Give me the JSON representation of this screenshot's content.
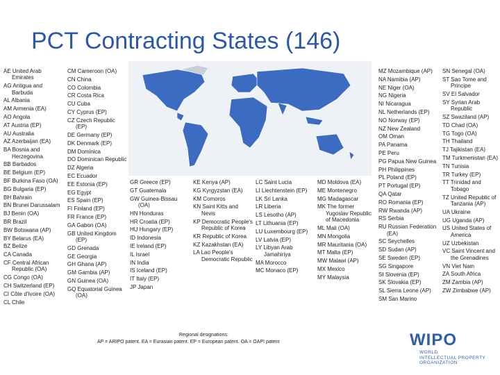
{
  "title": "PCT Contracting States (146)",
  "columns": [
    {
      "entries": [
        "AE United Arab Emirates",
        "AG Antigua and Barbuda",
        "AL Albania",
        "AM Armenia (EA)",
        "AO Angola",
        "AT Austria (EP)",
        "AU Australia",
        "AZ Azerbaijan (EA)",
        "BA Bosnia and Herzegovina",
        "BB Barbados",
        "BE Belgium (EP)",
        "BF Burkina Faso (OA)",
        "BG Bulgaria (EP)",
        "BH Bahrain",
        "BN Brunei Darussalam",
        "BJ Benin (OA)",
        "BR Brazil",
        "BW Botswana (AP)",
        "BY Belarus (EA)",
        "BZ Belize",
        "CA Canada",
        "CF Central African Republic (OA)",
        "CG Congo (OA)",
        "CH Switzerland (EP)",
        "CI Côte d'Ivoire (OA)",
        "CL Chile"
      ]
    },
    {
      "entries": [
        "CM Cameroon (OA)",
        "CN China",
        "CO Colombia",
        "CR Costa Rica",
        "CU Cuba",
        "CY Cyprus (EP)",
        "CZ Czech Republic (EP)",
        "DE Germany (EP)",
        "DK Denmark (EP)",
        "DM Dominica",
        "DO Dominican Republic",
        "DZ Algeria",
        "EC Ecuador",
        "EE Estonia (EP)",
        "EG Egypt",
        "ES Spain (EP)",
        "FI Finland (EP)",
        "FR France (EP)",
        "GA Gabon (OA)",
        "GB United Kingdom (EP)",
        "GD Grenada",
        "GE Georgia",
        "GH Ghana (AP)",
        "GM Gambia (AP)",
        "GN Guinea (OA)",
        "GQ Equatorial Guinea (OA)"
      ]
    },
    {
      "entries": [
        "GR Greece (EP)",
        "GT Guatemala",
        "GW Guinea-Bissau (OA)",
        "HN Honduras",
        "HR Croatia (EP)",
        "HU Hungary (EP)",
        "ID Indonesia",
        "IE Ireland (EP)",
        "IL Israel",
        "IN India",
        "IS Iceland (EP)",
        "IT Italy (EP)",
        "JP Japan"
      ]
    },
    {
      "entries": [
        "KE Kenya (AP)",
        "KG Kyrgyzstan (EA)",
        "KM Comoros",
        "KN Saint Kitts and Nevis",
        "KP Democratic People's Republic of Korea",
        "KR Republic of Korea",
        "KZ Kazakhstan (EA)",
        "LA Lao People's Democratic Republic"
      ]
    },
    {
      "entries": [
        "LC Saint Lucia",
        "LI Liechtenstein (EP)",
        "LK Sri Lanka",
        "LR Liberia",
        "LS Lesotho (AP)",
        "LT Lithuania (EP)",
        "LU Luxembourg (EP)",
        "LV Latvia (EP)",
        "LY Libyan Arab Jamahiriya",
        "MA Morocco",
        "MC Monaco (EP)"
      ]
    },
    {
      "entries": [
        "MD Moldova (EA)",
        "ME Montenegro",
        "MG Madagascar",
        "MK The former Yugoslav Republic of Macedonia",
        "ML Mali (OA)",
        "MN Mongolia",
        "MR Mauritania (OA)",
        "MT Malta (EP)",
        "MW Malawi (AP)",
        "MX Mexico",
        "MY Malaysia"
      ]
    },
    {
      "entries": [
        "MZ Mozambique (AP)",
        "NA Namibia (AP)",
        "NE Niger (OA)",
        "NG Nigeria",
        "NI Nicaragua",
        "NL Netherlands (EP)",
        "NO Norway (EP)",
        "NZ New Zealand",
        "OM Oman",
        "PA Panama",
        "PE Peru",
        "PG Papua New Guinea",
        "PH Philippines",
        "PL Poland (EP)",
        "PT Portugal (EP)",
        "QA Qatar",
        "RO Romania (EP)",
        "RW Rwanda (AP)",
        "RS Serbia",
        "RU Russian Federation (EA)",
        "SC Seychelles",
        "SD Sudan (AP)",
        "SE Sweden (EP)",
        "SG Singapore",
        "SI Slovenia (EP)",
        "SK Slovakia (EP)",
        "SL Sierra Leone (AP)",
        "SM San Marino"
      ]
    },
    {
      "entries": [
        "SN Senegal (OA)",
        "ST Sao Tome and Principe",
        "SV El Salvador",
        "SY Syrian Arab Republic",
        "SZ Swaziland (AP)",
        "TD Chad (OA)",
        "TG Togo (OA)",
        "TH Thailand",
        "TJ Tajikistan (EA)",
        "TM Turkmenistan (EA)",
        "TN Tunisia",
        "TR Turkey (EP)",
        "TT Trinidad and Tobago",
        "TZ United Republic of Tanzania (AP)",
        "UA Ukraine",
        "UG Uganda (AP)",
        "US United States of America",
        "UZ Uzbekistan",
        "VC Saint Vincent and the Grenadines",
        "VN Viet Nam",
        "ZA South Africa",
        "ZM Zambia (AP)",
        "ZW Zimbabwe (AP)"
      ]
    }
  ],
  "regional_note": {
    "heading": "Regional designations:",
    "text": "AP = ARIPO patent. EA = Eurasian patent. EP = European patent. OA = OAPI patent"
  },
  "logo": {
    "name": "WIPO",
    "full_name": [
      "WORLD",
      "INTELLECTUAL PROPERTY",
      "ORGANIZATION"
    ]
  }
}
